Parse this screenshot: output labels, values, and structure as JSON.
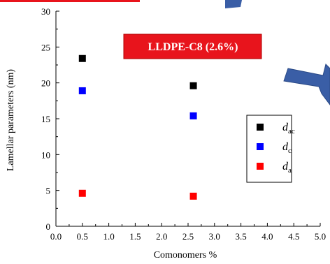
{
  "chart_data": {
    "type": "scatter",
    "title": "LLDPE-C8 (2.6%)",
    "xlabel": "Comonomers %",
    "ylabel": "Lamellar parameters (nm)",
    "xlim": [
      0.0,
      5.0
    ],
    "ylim": [
      0,
      30
    ],
    "x_ticks": [
      "0.0",
      "0.5",
      "1.0",
      "1.5",
      "2.0",
      "2.5",
      "3.0",
      "3.5",
      "4.0",
      "4.5",
      "5.0"
    ],
    "y_ticks": [
      "0",
      "5",
      "10",
      "15",
      "20",
      "25",
      "30"
    ],
    "grid": false,
    "legend_position": "right",
    "series": [
      {
        "name": "d",
        "sub": "ac",
        "color": "#000000",
        "x": [
          0.5,
          2.6
        ],
        "y": [
          23.4,
          19.6
        ]
      },
      {
        "name": "d",
        "sub": "c",
        "color": "#0000ff",
        "x": [
          0.5,
          2.6
        ],
        "y": [
          18.9,
          15.4
        ]
      },
      {
        "name": "d",
        "sub": "a",
        "color": "#ff0000",
        "x": [
          0.5,
          2.6
        ],
        "y": [
          4.6,
          4.2
        ]
      }
    ]
  },
  "colors": {
    "title_box": "#e8141c",
    "arrow": "#3a5ea6"
  }
}
